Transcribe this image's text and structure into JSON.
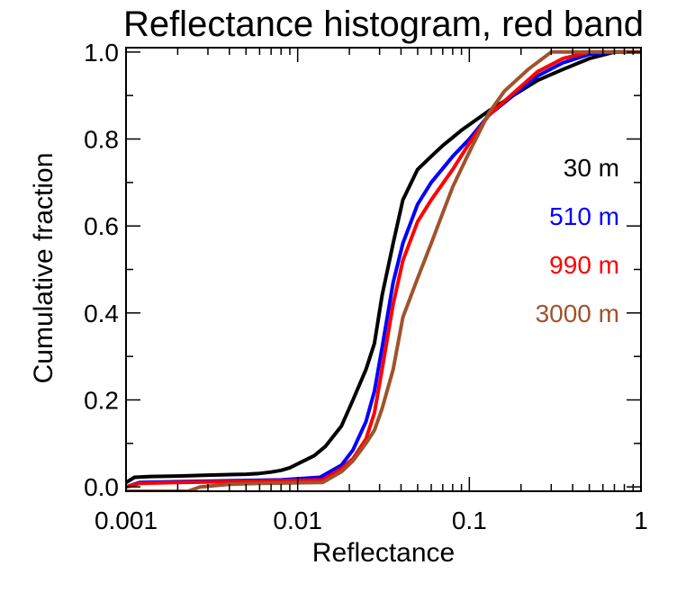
{
  "chart_data": {
    "type": "line",
    "title": "Reflectance histogram, red band",
    "xlabel": "Reflectance",
    "ylabel": "Cumulative fraction",
    "x_scale": "log",
    "xlim": [
      0.001,
      1
    ],
    "ylim": [
      -0.01,
      1.01
    ],
    "x_ticks": [
      {
        "value": 0.001,
        "label": "0.001"
      },
      {
        "value": 0.01,
        "label": "0.01"
      },
      {
        "value": 0.1,
        "label": "0.1"
      },
      {
        "value": 1,
        "label": "1"
      }
    ],
    "y_ticks": [
      {
        "value": 0.0,
        "label": "0.0"
      },
      {
        "value": 0.2,
        "label": "0.2"
      },
      {
        "value": 0.4,
        "label": "0.4"
      },
      {
        "value": 0.6,
        "label": "0.6"
      },
      {
        "value": 0.8,
        "label": "0.8"
      },
      {
        "value": 1.0,
        "label": "1.0"
      }
    ],
    "grid": false,
    "legend_position": "right",
    "series": [
      {
        "name": "30 m",
        "color": "#000000",
        "points": [
          [
            0.001,
            0.01
          ],
          [
            0.00112,
            0.022
          ],
          [
            0.0014,
            0.024
          ],
          [
            0.002,
            0.025
          ],
          [
            0.003,
            0.027
          ],
          [
            0.005,
            0.029
          ],
          [
            0.006,
            0.031
          ],
          [
            0.007,
            0.034
          ],
          [
            0.008,
            0.038
          ],
          [
            0.009,
            0.044
          ],
          [
            0.0105,
            0.057
          ],
          [
            0.0125,
            0.072
          ],
          [
            0.0145,
            0.093
          ],
          [
            0.018,
            0.14
          ],
          [
            0.021,
            0.2
          ],
          [
            0.025,
            0.27
          ],
          [
            0.028,
            0.33
          ],
          [
            0.031,
            0.44
          ],
          [
            0.036,
            0.56
          ],
          [
            0.041,
            0.66
          ],
          [
            0.05,
            0.73
          ],
          [
            0.06,
            0.76
          ],
          [
            0.07,
            0.785
          ],
          [
            0.09,
            0.82
          ],
          [
            0.13,
            0.865
          ],
          [
            0.18,
            0.9
          ],
          [
            0.25,
            0.935
          ],
          [
            0.35,
            0.96
          ],
          [
            0.5,
            0.985
          ],
          [
            0.7,
            1.0
          ],
          [
            1.0,
            1.0
          ]
        ]
      },
      {
        "name": "510 m",
        "color": "#0000ff",
        "points": [
          [
            0.001,
            0.0
          ],
          [
            0.0012,
            0.01
          ],
          [
            0.002,
            0.012
          ],
          [
            0.004,
            0.014
          ],
          [
            0.008,
            0.016
          ],
          [
            0.0135,
            0.022
          ],
          [
            0.018,
            0.05
          ],
          [
            0.021,
            0.085
          ],
          [
            0.025,
            0.15
          ],
          [
            0.028,
            0.22
          ],
          [
            0.031,
            0.32
          ],
          [
            0.036,
            0.47
          ],
          [
            0.041,
            0.56
          ],
          [
            0.05,
            0.65
          ],
          [
            0.06,
            0.7
          ],
          [
            0.08,
            0.76
          ],
          [
            0.1,
            0.8
          ],
          [
            0.13,
            0.855
          ],
          [
            0.18,
            0.9
          ],
          [
            0.25,
            0.945
          ],
          [
            0.35,
            0.975
          ],
          [
            0.5,
            0.995
          ],
          [
            0.7,
            1.0
          ],
          [
            1.0,
            1.0
          ]
        ]
      },
      {
        "name": "990 m",
        "color": "#ff0000",
        "points": [
          [
            0.001,
            0.0
          ],
          [
            0.0012,
            0.008
          ],
          [
            0.002,
            0.01
          ],
          [
            0.004,
            0.012
          ],
          [
            0.008,
            0.014
          ],
          [
            0.014,
            0.016
          ],
          [
            0.018,
            0.042
          ],
          [
            0.021,
            0.065
          ],
          [
            0.025,
            0.11
          ],
          [
            0.028,
            0.17
          ],
          [
            0.031,
            0.27
          ],
          [
            0.036,
            0.42
          ],
          [
            0.041,
            0.52
          ],
          [
            0.05,
            0.61
          ],
          [
            0.06,
            0.66
          ],
          [
            0.08,
            0.73
          ],
          [
            0.1,
            0.79
          ],
          [
            0.13,
            0.855
          ],
          [
            0.18,
            0.905
          ],
          [
            0.25,
            0.955
          ],
          [
            0.35,
            0.985
          ],
          [
            0.5,
            1.0
          ],
          [
            0.7,
            1.0
          ],
          [
            1.0,
            1.0
          ]
        ]
      },
      {
        "name": "3000 m",
        "color": "#a0522d",
        "points": [
          [
            0.001,
            -0.01
          ],
          [
            0.0023,
            -0.01
          ],
          [
            0.0027,
            0.0
          ],
          [
            0.004,
            0.006
          ],
          [
            0.006,
            0.008
          ],
          [
            0.009,
            0.009
          ],
          [
            0.014,
            0.01
          ],
          [
            0.018,
            0.035
          ],
          [
            0.021,
            0.06
          ],
          [
            0.025,
            0.1
          ],
          [
            0.028,
            0.13
          ],
          [
            0.031,
            0.18
          ],
          [
            0.036,
            0.27
          ],
          [
            0.041,
            0.39
          ],
          [
            0.05,
            0.48
          ],
          [
            0.06,
            0.56
          ],
          [
            0.07,
            0.63
          ],
          [
            0.08,
            0.69
          ],
          [
            0.1,
            0.77
          ],
          [
            0.13,
            0.86
          ],
          [
            0.16,
            0.91
          ],
          [
            0.22,
            0.96
          ],
          [
            0.3,
            1.0
          ],
          [
            0.5,
            1.0
          ],
          [
            0.7,
            1.0
          ],
          [
            1.0,
            1.0
          ]
        ]
      }
    ]
  }
}
